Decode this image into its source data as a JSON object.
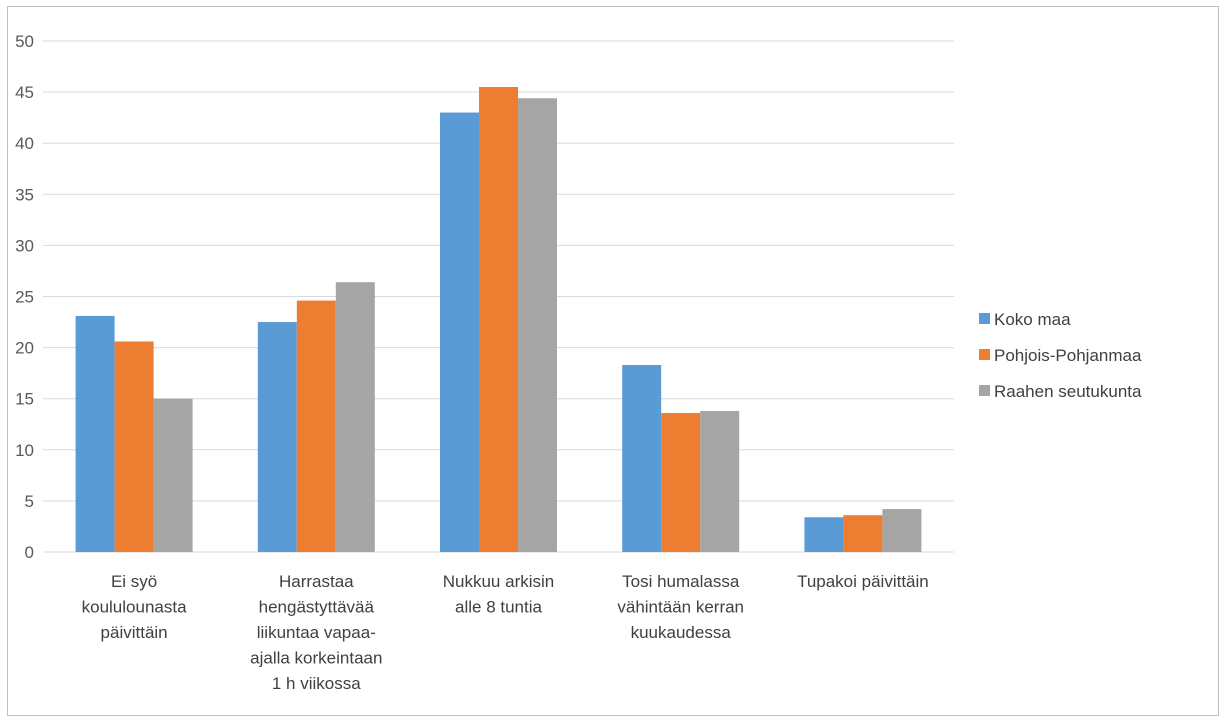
{
  "chart_data": {
    "type": "bar",
    "categories": [
      [
        "Ei syö",
        "koululounasta",
        "päivittäin"
      ],
      [
        "Harrastaa",
        "hengästyttävää",
        "liikuntaa vapaa-",
        "ajalla korkeintaan",
        "1 h viikossa"
      ],
      [
        "Nukkuu arkisin",
        "alle 8 tuntia"
      ],
      [
        "Tosi humalassa",
        "vähintään kerran",
        "kuukaudessa"
      ],
      [
        "Tupakoi päivittäin"
      ]
    ],
    "series": [
      {
        "name": "Koko maa",
        "color": "#5b9bd5",
        "values": [
          23.1,
          22.5,
          43.0,
          18.3,
          3.4
        ]
      },
      {
        "name": "Pohjois-Pohjanmaa",
        "color": "#ed7d31",
        "values": [
          20.6,
          24.6,
          45.5,
          13.6,
          3.6
        ]
      },
      {
        "name": "Raahen seutukunta",
        "color": "#a5a5a5",
        "values": [
          15.0,
          26.4,
          44.4,
          13.8,
          4.2
        ]
      }
    ],
    "title": "",
    "xlabel": "",
    "ylabel": "",
    "ylim": [
      0,
      50
    ],
    "yticks": [
      0,
      5,
      10,
      15,
      20,
      25,
      30,
      35,
      40,
      45,
      50
    ],
    "grid": true,
    "legend_position": "right"
  }
}
